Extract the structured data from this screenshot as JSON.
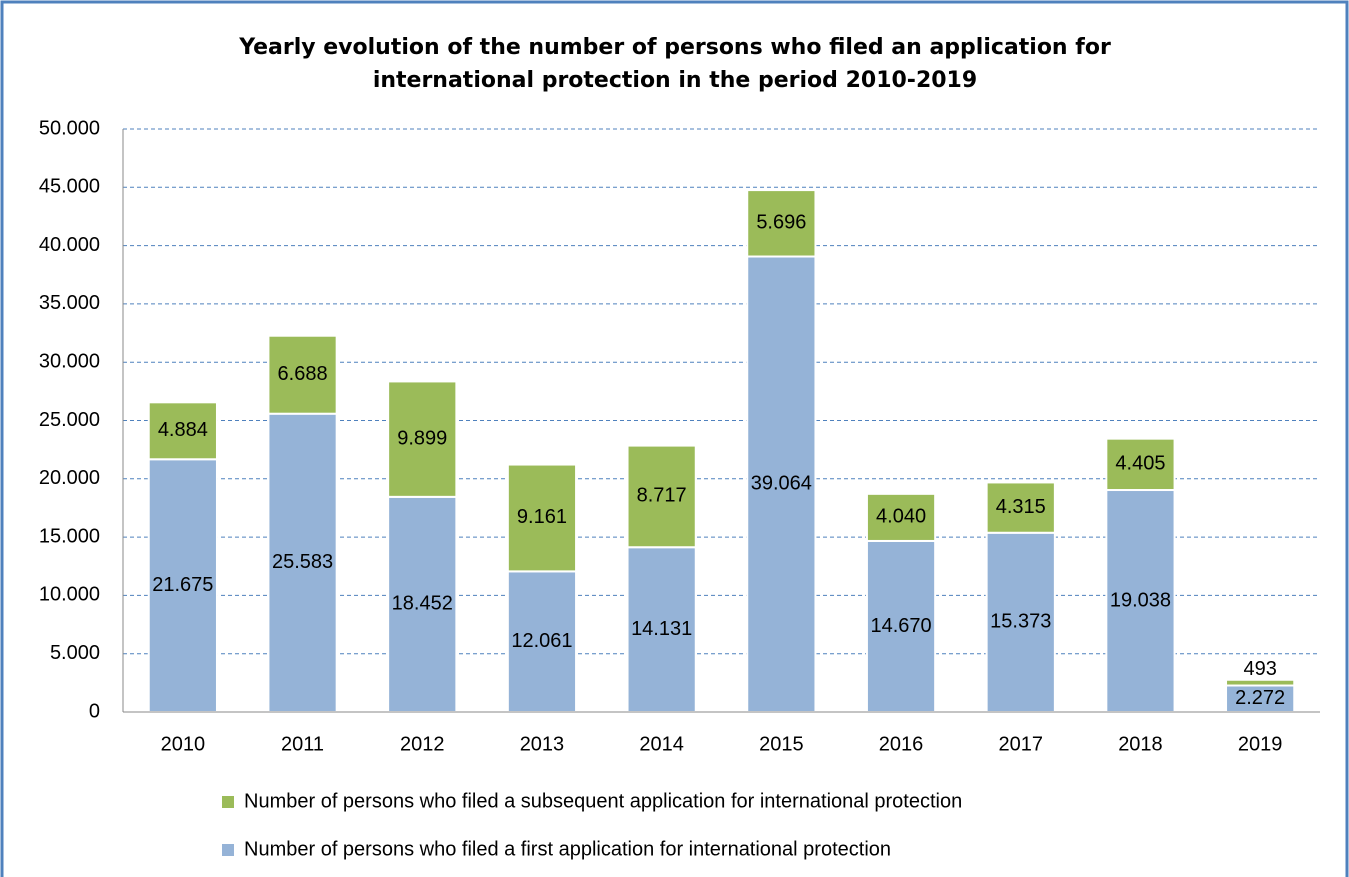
{
  "chart_data": {
    "type": "stacked_bar",
    "title": "Yearly evolution of the number of persons who filed an application for international protection in the period 2010-2019",
    "categories": [
      "2010",
      "2011",
      "2012",
      "2013",
      "2014",
      "2015",
      "2016",
      "2017",
      "2018",
      "2019"
    ],
    "series": [
      {
        "name": "Number of persons who filed a first application for international protection",
        "color": "#95b3d7",
        "values": [
          21675,
          25583,
          18452,
          12061,
          14131,
          39064,
          14670,
          15373,
          19038,
          2272
        ],
        "value_labels": [
          "21.675",
          "25.583",
          "18.452",
          "12.061",
          "14.131",
          "39.064",
          "14.670",
          "15.373",
          "19.038",
          "2.272"
        ]
      },
      {
        "name": "Number of persons who filed a subsequent application for international protection",
        "color": "#9bbb59",
        "values": [
          4884,
          6688,
          9899,
          9161,
          8717,
          5696,
          4040,
          4315,
          4405,
          493
        ],
        "value_labels": [
          "4.884",
          "6.688",
          "9.899",
          "9.161",
          "8.717",
          "5.696",
          "4.040",
          "4.315",
          "4.405",
          "493"
        ]
      }
    ],
    "ylim": [
      0,
      50000
    ],
    "yticks": [
      0,
      {
        "value": 5000,
        "label": "5.000"
      },
      {
        "value": 10000,
        "label": "10.000"
      },
      {
        "value": 15000,
        "label": "15.000"
      },
      {
        "value": 20000,
        "label": "20.000"
      },
      {
        "value": 25000,
        "label": "25.000"
      },
      {
        "value": 30000,
        "label": "30.000"
      },
      {
        "value": 35000,
        "label": "35.000"
      },
      {
        "value": 40000,
        "label": "40.000"
      },
      {
        "value": 45000,
        "label": "45.000"
      },
      {
        "value": 50000,
        "label": "50.000"
      }
    ],
    "grid": true,
    "legend": "bottom"
  }
}
